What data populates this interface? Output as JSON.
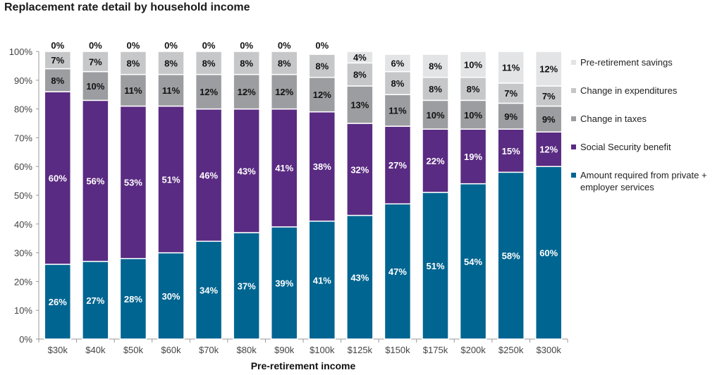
{
  "chart_data": {
    "type": "bar",
    "stacked": true,
    "title": "Replacement rate detail by household income",
    "xlabel": "Pre-retirement income",
    "ylabel": "",
    "ylim": [
      0,
      100
    ],
    "yticks": [
      "0%",
      "10%",
      "20%",
      "30%",
      "40%",
      "50%",
      "60%",
      "70%",
      "80%",
      "90%",
      "100%"
    ],
    "categories": [
      "$30k",
      "$40k",
      "$50k",
      "$60k",
      "$70k",
      "$80k",
      "$90k",
      "$100k",
      "$125k",
      "$150k",
      "$175k",
      "$200k",
      "$250k",
      "$300k"
    ],
    "legend_position": "right",
    "series": [
      {
        "name": "Amount required from private + employer services",
        "color": "#006591",
        "label_color": "#ffffff",
        "values": [
          26,
          27,
          28,
          30,
          34,
          37,
          39,
          41,
          43,
          47,
          51,
          54,
          58,
          60
        ]
      },
      {
        "name": "Social Security benefit",
        "color": "#5a2b82",
        "label_color": "#ffffff",
        "values": [
          60,
          56,
          53,
          51,
          46,
          43,
          41,
          38,
          32,
          27,
          22,
          19,
          15,
          12
        ]
      },
      {
        "name": "Change in taxes",
        "color": "#9c9da1",
        "label_color": "#111111",
        "values": [
          8,
          10,
          11,
          11,
          12,
          12,
          12,
          12,
          13,
          11,
          10,
          10,
          9,
          9
        ]
      },
      {
        "name": "Change in expenditures",
        "color": "#c6c7c9",
        "label_color": "#111111",
        "values": [
          7,
          7,
          8,
          8,
          8,
          8,
          8,
          8,
          8,
          8,
          8,
          8,
          7,
          7
        ]
      },
      {
        "name": "Pre-retirement savings",
        "color": "#e3e4e6",
        "label_color": "#111111",
        "values": [
          0,
          0,
          0,
          0,
          0,
          0,
          0,
          0,
          4,
          6,
          8,
          10,
          11,
          12
        ]
      }
    ]
  }
}
